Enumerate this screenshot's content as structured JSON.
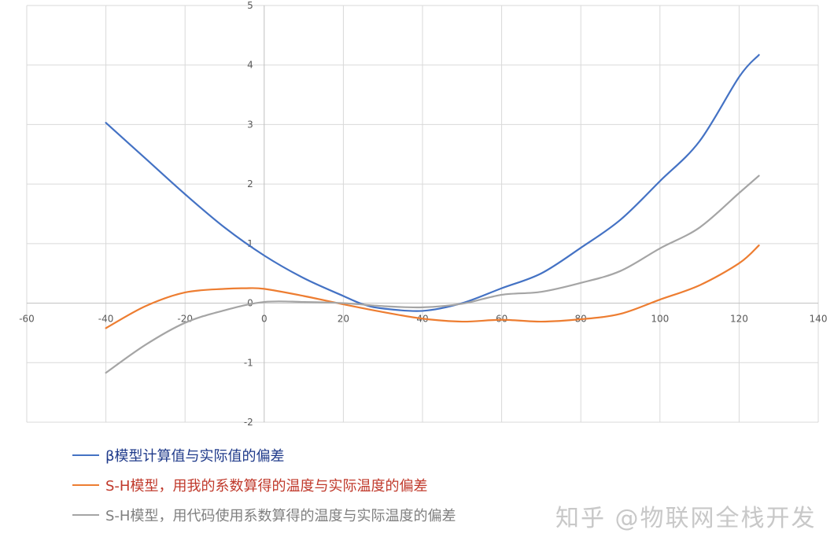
{
  "chart_data": {
    "type": "line",
    "title": "",
    "xlabel": "",
    "ylabel": "",
    "xlim": [
      -60,
      140
    ],
    "ylim": [
      -2,
      5
    ],
    "x_ticks": [
      -60,
      -40,
      -20,
      0,
      20,
      40,
      60,
      80,
      100,
      120,
      140
    ],
    "y_ticks": [
      5,
      4,
      3,
      2,
      1,
      0,
      -1,
      -2
    ],
    "grid": true,
    "legend_position": "bottom-left",
    "series": [
      {
        "name": "β模型计算值与实际值的偏差",
        "color": "#4472c4",
        "x": [
          -40,
          -30,
          -20,
          -10,
          0,
          10,
          20,
          25,
          30,
          40,
          50,
          60,
          70,
          80,
          90,
          100,
          110,
          120,
          125
        ],
        "y": [
          3.03,
          2.43,
          1.83,
          1.27,
          0.8,
          0.42,
          0.12,
          -0.02,
          -0.09,
          -0.13,
          0.0,
          0.25,
          0.5,
          0.93,
          1.4,
          2.05,
          2.72,
          3.8,
          4.17
        ]
      },
      {
        "name": "S-H模型，用我的系数算得的温度与实际温度的偏差",
        "color": "#ed7d31",
        "x": [
          -40,
          -30,
          -20,
          -10,
          -5,
          0,
          10,
          20,
          30,
          40,
          50,
          60,
          70,
          80,
          90,
          100,
          110,
          120,
          125
        ],
        "y": [
          -0.42,
          -0.05,
          0.18,
          0.24,
          0.25,
          0.24,
          0.12,
          -0.02,
          -0.15,
          -0.26,
          -0.31,
          -0.28,
          -0.31,
          -0.27,
          -0.18,
          0.06,
          0.3,
          0.67,
          0.97
        ]
      },
      {
        "name": "S-H模型，用代码使用系数算得的温度与实际温度的偏差",
        "color": "#a5a5a5",
        "x": [
          -40,
          -30,
          -20,
          -10,
          0,
          10,
          20,
          30,
          40,
          50,
          60,
          70,
          80,
          90,
          100,
          110,
          120,
          125
        ],
        "y": [
          -1.17,
          -0.7,
          -0.33,
          -0.12,
          0.02,
          0.02,
          0.0,
          -0.05,
          -0.07,
          -0.01,
          0.14,
          0.19,
          0.34,
          0.54,
          0.92,
          1.27,
          1.85,
          2.14
        ]
      }
    ]
  },
  "watermark": "知乎 @物联网全栈开发"
}
